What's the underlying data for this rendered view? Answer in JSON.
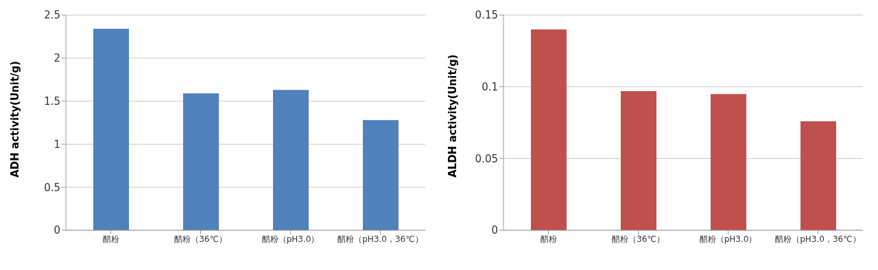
{
  "chart_data": [
    {
      "type": "bar",
      "ylabel": "ADH activity(Unit/g)",
      "categories": [
        "醋粉",
        "醋粉（36℃）",
        "醋粉（pH3.0）",
        "醋粉（pH3.0，36℃）"
      ],
      "values": [
        2.34,
        1.59,
        1.63,
        1.28
      ],
      "color": "#4f81bd",
      "ylim": [
        0,
        2.5
      ],
      "yticks": [
        0,
        0.5,
        1,
        1.5,
        2,
        2.5
      ],
      "grid": "y"
    },
    {
      "type": "bar",
      "ylabel": "ALDH activity(Unit/g)",
      "categories": [
        "醋粉",
        "醋粉（36℃）",
        "醋粉（pH3.0）",
        "醋粉（pH3.0，36℃）"
      ],
      "values": [
        0.14,
        0.097,
        0.095,
        0.076
      ],
      "color": "#c0504d",
      "ylim": [
        0,
        0.15
      ],
      "yticks": [
        0,
        0.05,
        0.1,
        0.15
      ],
      "grid": "y"
    }
  ]
}
